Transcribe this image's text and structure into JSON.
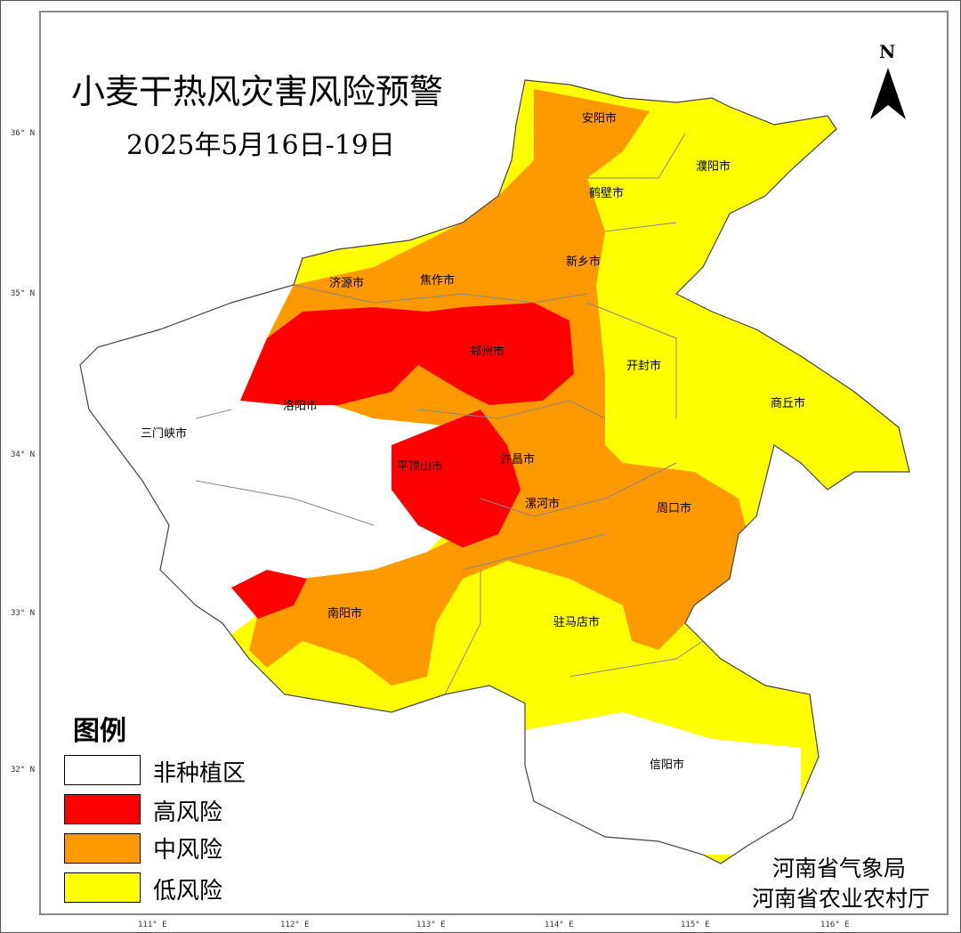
{
  "title": "小麦干热风灾害风险预警",
  "subtitle": "2025年5月16日-19日",
  "north_label": "N",
  "lat_labels": [
    "36° N",
    "35° N",
    "34° N",
    "33° N",
    "32° N"
  ],
  "lon_labels": [
    "111° E",
    "112° E",
    "113° E",
    "114° E",
    "115° E",
    "116° E"
  ],
  "cities": [
    "安阳市",
    "濮阳市",
    "鹤壁市",
    "新乡市",
    "济源市",
    "焦作市",
    "郑州市",
    "开封市",
    "商丘市",
    "洛阳市",
    "三门峡市",
    "平顶山市",
    "许昌市",
    "漯河市",
    "周口市",
    "南阳市",
    "驻马店市",
    "信阳市"
  ],
  "legend": {
    "title": "图例",
    "items": [
      {
        "label": "非种植区",
        "color": "#ffffff"
      },
      {
        "label": "高风险",
        "color": "#ff0000"
      },
      {
        "label": "中风险",
        "color": "#ff9900"
      },
      {
        "label": "低风险",
        "color": "#ffff00"
      }
    ]
  },
  "agencies": [
    "河南省气象局",
    "河南省农业农村厅"
  ]
}
